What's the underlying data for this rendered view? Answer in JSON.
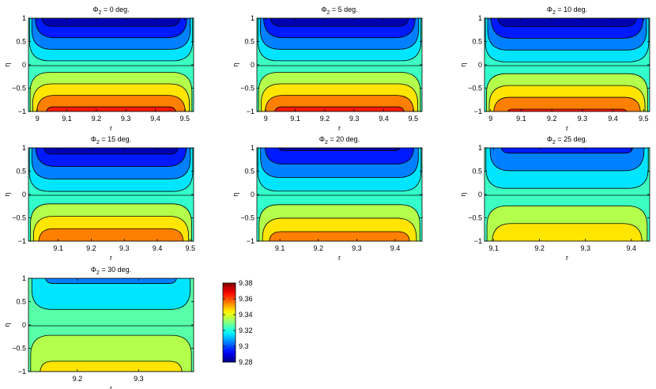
{
  "chart_data": {
    "type": "heatmap",
    "colormap": "jet",
    "contour_lines": true,
    "colorbar": {
      "range": [
        9.28,
        9.38
      ],
      "ticks": [
        "9.38",
        "9.36",
        "9.34",
        "9.32",
        "9.3",
        "9.28"
      ]
    },
    "panels": [
      {
        "title_base": "Φ",
        "title_sub": "2",
        "title_tail": " = 0 deg.",
        "phi": 0,
        "xlabel": "r",
        "ylabel": "η",
        "xlim": [
          8.97,
          9.53
        ],
        "ylim": [
          -1,
          1
        ],
        "xticks": [
          "9",
          "9.1",
          "9.2",
          "9.3",
          "9.4",
          "9.5"
        ],
        "xtick_values": [
          9,
          9.1,
          9.2,
          9.3,
          9.4,
          9.5
        ],
        "yticks": [
          "1",
          "0.5",
          "0",
          "−0.5",
          "−1"
        ],
        "top_value": 9.283,
        "bottom_value": 9.364
      },
      {
        "title_base": "Φ",
        "title_sub": "2",
        "title_tail": " = 5 deg.",
        "phi": 5,
        "xlabel": "r",
        "ylabel": "η",
        "xlim": [
          8.97,
          9.53
        ],
        "ylim": [
          -1,
          1
        ],
        "xticks": [
          "9",
          "9.1",
          "9.2",
          "9.3",
          "9.4",
          "9.5"
        ],
        "xtick_values": [
          9,
          9.1,
          9.2,
          9.3,
          9.4,
          9.5
        ],
        "yticks": [
          "1",
          "0.5",
          "0",
          "−0.5",
          "−1"
        ],
        "top_value": 9.283,
        "bottom_value": 9.364
      },
      {
        "title_base": "Φ",
        "title_sub": "2",
        "title_tail": " = 10 deg.",
        "phi": 10,
        "xlabel": "r",
        "ylabel": "η",
        "xlim": [
          8.98,
          9.52
        ],
        "ylim": [
          -1,
          1
        ],
        "xticks": [
          "9",
          "9.1",
          "9.2",
          "9.3",
          "9.4",
          "9.5"
        ],
        "xtick_values": [
          9,
          9.1,
          9.2,
          9.3,
          9.4,
          9.5
        ],
        "yticks": [
          "1",
          "0.5",
          "0",
          "−0.5",
          "−1"
        ],
        "top_value": 9.283,
        "bottom_value": 9.362
      },
      {
        "title_base": "Φ",
        "title_sub": "2",
        "title_tail": " = 15 deg.",
        "phi": 15,
        "xlabel": "r",
        "ylabel": "η",
        "xlim": [
          9.01,
          9.51
        ],
        "ylim": [
          -1,
          1
        ],
        "xticks": [
          "9.1",
          "9.2",
          "9.3",
          "9.4",
          "9.5"
        ],
        "xtick_values": [
          9.1,
          9.2,
          9.3,
          9.4,
          9.5
        ],
        "yticks": [
          "1",
          "0.5",
          "0",
          "−0.5",
          "−1"
        ],
        "top_value": 9.285,
        "bottom_value": 9.36
      },
      {
        "title_base": "Φ",
        "title_sub": "2",
        "title_tail": " = 20 deg.",
        "phi": 20,
        "xlabel": "r",
        "ylabel": "η",
        "xlim": [
          9.04,
          9.47
        ],
        "ylim": [
          -1,
          1
        ],
        "xticks": [
          "9.1",
          "9.2",
          "9.3",
          "9.4"
        ],
        "xtick_values": [
          9.1,
          9.2,
          9.3,
          9.4
        ],
        "yticks": [
          "1",
          "0.5",
          "0",
          "−0.5",
          "−1"
        ],
        "top_value": 9.288,
        "bottom_value": 9.357
      },
      {
        "title_base": "Φ",
        "title_sub": "2",
        "title_tail": " = 25 deg.",
        "phi": 25,
        "xlabel": "r",
        "ylabel": "η",
        "xlim": [
          9.08,
          9.44
        ],
        "ylim": [
          -1,
          1
        ],
        "xticks": [
          "9.1",
          "9.2",
          "9.3",
          "9.4"
        ],
        "xtick_values": [
          9.1,
          9.2,
          9.3,
          9.4
        ],
        "yticks": [
          "1",
          "0.5",
          "0",
          "−0.5",
          "−1"
        ],
        "top_value": 9.297,
        "bottom_value": 9.35
      },
      {
        "title_base": "Φ",
        "title_sub": "2",
        "title_tail": " = 30 deg.",
        "phi": 30,
        "xlabel": "r",
        "ylabel": "η",
        "xlim": [
          9.12,
          9.39
        ],
        "ylim": [
          -1,
          1
        ],
        "xticks": [
          "9.2",
          "9.3"
        ],
        "xtick_values": [
          9.2,
          9.3
        ],
        "yticks": [
          "1",
          "0.5",
          "0",
          "−0.5",
          "−1"
        ],
        "top_value": 9.308,
        "bottom_value": 9.344
      }
    ]
  }
}
